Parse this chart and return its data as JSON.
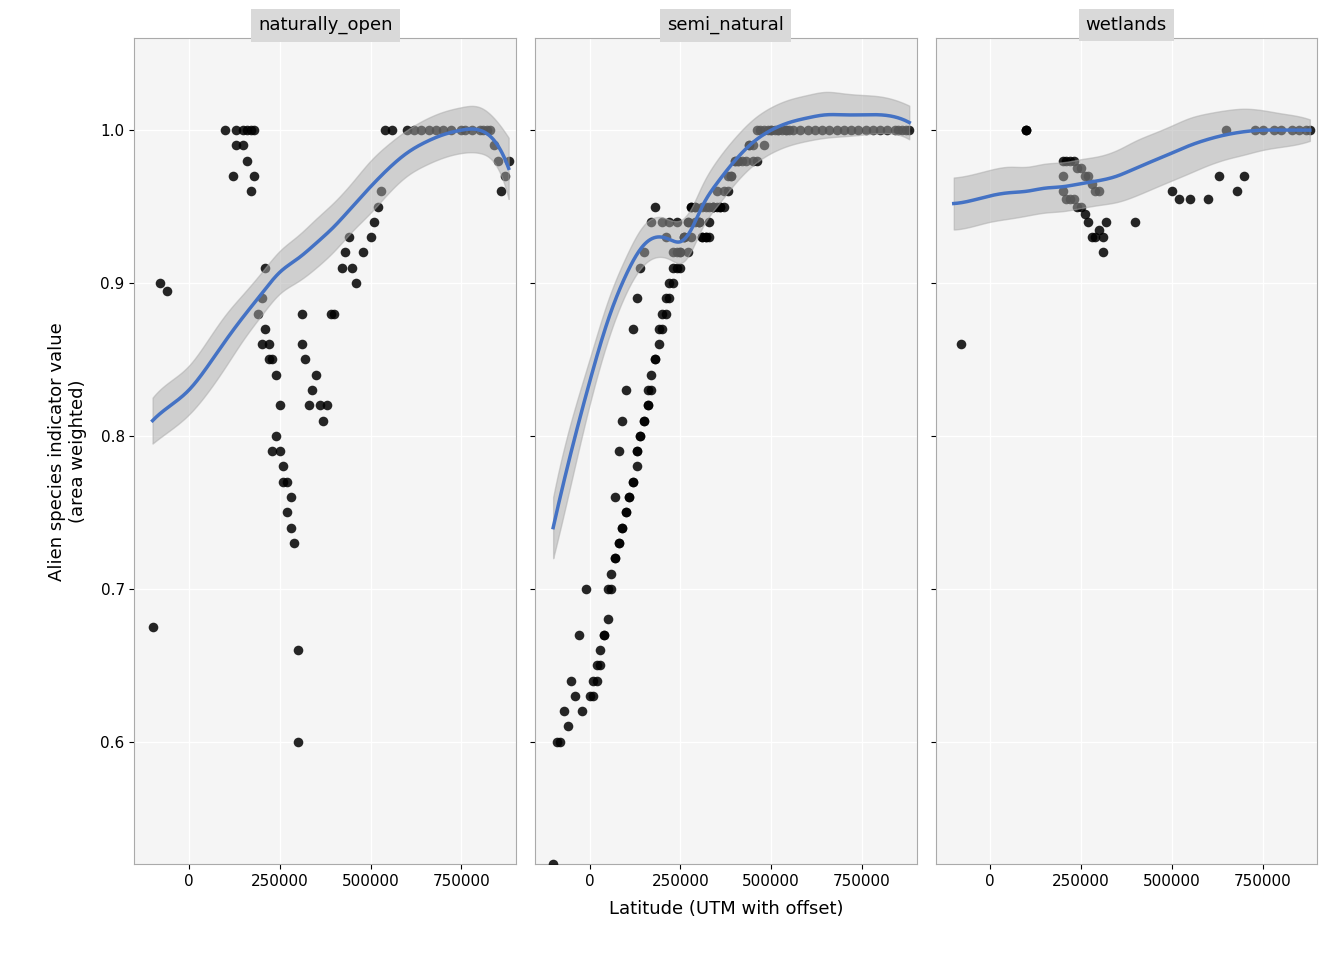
{
  "panels": [
    "naturally_open",
    "semi_natural",
    "wetlands"
  ],
  "xlabel": "Latitude (UTM with offset)",
  "ylabel": "Alien species indicator value\n(area weighted)",
  "xlim": [
    -150000,
    900000
  ],
  "ylim": [
    0.52,
    1.06
  ],
  "yticks": [
    0.6,
    0.7,
    0.8,
    0.9,
    1.0
  ],
  "xticks": [
    0,
    250000,
    500000,
    750000
  ],
  "xticklabels": [
    "0",
    "250000",
    "500000",
    "750000"
  ],
  "background_color": "#FFFFFF",
  "panel_bg": "#F5F5F5",
  "strip_bg": "#D9D9D9",
  "grid_color": "#FFFFFF",
  "point_color": "#000000",
  "loess_color": "#4472C4",
  "loess_ci_color": "#AAAAAA",
  "point_size": 6,
  "point_alpha": 0.85,
  "naturally_open_x": [
    -100000,
    -80000,
    -60000,
    100000,
    120000,
    130000,
    130000,
    150000,
    150000,
    160000,
    160000,
    170000,
    170000,
    180000,
    180000,
    190000,
    200000,
    200000,
    210000,
    210000,
    220000,
    220000,
    230000,
    230000,
    240000,
    240000,
    250000,
    250000,
    260000,
    260000,
    270000,
    270000,
    280000,
    280000,
    290000,
    300000,
    300000,
    310000,
    310000,
    320000,
    330000,
    340000,
    350000,
    360000,
    370000,
    380000,
    390000,
    400000,
    420000,
    430000,
    440000,
    450000,
    460000,
    480000,
    500000,
    510000,
    520000,
    530000,
    540000,
    560000,
    600000,
    620000,
    640000,
    660000,
    680000,
    700000,
    720000,
    750000,
    760000,
    780000,
    800000,
    810000,
    820000,
    830000,
    840000,
    850000,
    860000,
    870000,
    880000
  ],
  "naturally_open_y": [
    0.675,
    0.9,
    0.895,
    1.0,
    0.97,
    0.99,
    1.0,
    1.0,
    0.99,
    0.98,
    1.0,
    1.0,
    0.96,
    1.0,
    0.97,
    0.88,
    0.89,
    0.86,
    0.91,
    0.87,
    0.85,
    0.86,
    0.85,
    0.79,
    0.84,
    0.8,
    0.82,
    0.79,
    0.78,
    0.77,
    0.77,
    0.75,
    0.76,
    0.74,
    0.73,
    0.66,
    0.6,
    0.88,
    0.86,
    0.85,
    0.82,
    0.83,
    0.84,
    0.82,
    0.81,
    0.82,
    0.88,
    0.88,
    0.91,
    0.92,
    0.93,
    0.91,
    0.9,
    0.92,
    0.93,
    0.94,
    0.95,
    0.96,
    1.0,
    1.0,
    1.0,
    1.0,
    1.0,
    1.0,
    1.0,
    1.0,
    1.0,
    1.0,
    1.0,
    1.0,
    1.0,
    1.0,
    1.0,
    1.0,
    0.99,
    0.98,
    0.96,
    0.97,
    0.98
  ],
  "naturally_open_loess_x": [
    -100000,
    -50000,
    0,
    50000,
    100000,
    150000,
    200000,
    250000,
    300000,
    350000,
    400000,
    450000,
    500000,
    550000,
    600000,
    650000,
    700000,
    750000,
    800000,
    850000,
    880000
  ],
  "naturally_open_loess_y": [
    0.81,
    0.82,
    0.83,
    0.845,
    0.862,
    0.878,
    0.893,
    0.907,
    0.916,
    0.926,
    0.937,
    0.95,
    0.963,
    0.975,
    0.985,
    0.992,
    0.997,
    1.0,
    1.0,
    0.99,
    0.975
  ],
  "naturally_open_ci_low": [
    0.795,
    0.804,
    0.814,
    0.828,
    0.845,
    0.863,
    0.879,
    0.893,
    0.901,
    0.91,
    0.921,
    0.934,
    0.946,
    0.959,
    0.97,
    0.977,
    0.982,
    0.985,
    0.985,
    0.975,
    0.955
  ],
  "naturally_open_ci_high": [
    0.825,
    0.836,
    0.846,
    0.862,
    0.879,
    0.893,
    0.907,
    0.921,
    0.931,
    0.942,
    0.953,
    0.966,
    0.98,
    0.991,
    1.0,
    1.007,
    1.012,
    1.015,
    1.015,
    1.005,
    0.995
  ],
  "semi_natural_x": [
    -100000,
    -80000,
    -60000,
    -40000,
    -20000,
    0,
    10000,
    10000,
    20000,
    20000,
    30000,
    30000,
    40000,
    40000,
    50000,
    50000,
    60000,
    60000,
    70000,
    70000,
    80000,
    80000,
    90000,
    90000,
    100000,
    100000,
    110000,
    110000,
    120000,
    120000,
    130000,
    130000,
    130000,
    140000,
    140000,
    150000,
    150000,
    160000,
    160000,
    160000,
    170000,
    170000,
    180000,
    180000,
    190000,
    190000,
    200000,
    200000,
    210000,
    210000,
    220000,
    220000,
    230000,
    230000,
    240000,
    240000,
    250000,
    250000,
    260000,
    260000,
    270000,
    270000,
    280000,
    280000,
    290000,
    290000,
    300000,
    300000,
    310000,
    310000,
    320000,
    320000,
    330000,
    330000,
    340000,
    340000,
    350000,
    360000,
    370000,
    380000,
    390000,
    400000,
    410000,
    420000,
    430000,
    440000,
    450000,
    460000,
    470000,
    480000,
    490000,
    500000,
    510000,
    520000,
    530000,
    540000,
    550000,
    560000,
    580000,
    600000,
    620000,
    640000,
    660000,
    680000,
    700000,
    720000,
    740000,
    760000,
    780000,
    800000,
    820000,
    840000,
    850000,
    860000,
    870000,
    880000
  ],
  "semi_natural_y": [
    0.52,
    0.6,
    0.61,
    0.63,
    0.62,
    0.63,
    0.63,
    0.64,
    0.64,
    0.65,
    0.65,
    0.66,
    0.67,
    0.67,
    0.68,
    0.7,
    0.7,
    0.71,
    0.72,
    0.72,
    0.73,
    0.73,
    0.74,
    0.74,
    0.75,
    0.75,
    0.76,
    0.76,
    0.77,
    0.77,
    0.78,
    0.79,
    0.79,
    0.8,
    0.8,
    0.81,
    0.81,
    0.82,
    0.82,
    0.83,
    0.83,
    0.84,
    0.85,
    0.85,
    0.86,
    0.87,
    0.87,
    0.88,
    0.88,
    0.89,
    0.89,
    0.9,
    0.9,
    0.91,
    0.91,
    0.92,
    0.92,
    0.92,
    0.93,
    0.93,
    0.94,
    0.94,
    0.95,
    0.95,
    0.95,
    0.95,
    0.94,
    0.94,
    0.93,
    0.93,
    0.93,
    0.93,
    0.93,
    0.94,
    0.95,
    0.95,
    0.95,
    0.95,
    0.95,
    0.96,
    0.97,
    0.98,
    0.98,
    0.98,
    0.98,
    0.99,
    0.99,
    1.0,
    1.0,
    1.0,
    1.0,
    1.0,
    1.0,
    1.0,
    1.0,
    1.0,
    1.0,
    1.0,
    1.0,
    1.0,
    1.0,
    1.0,
    1.0,
    1.0,
    1.0,
    1.0,
    1.0,
    1.0,
    1.0,
    1.0,
    1.0,
    1.0,
    1.0,
    1.0,
    1.0,
    1.0
  ],
  "semi_natural_extra_x": [
    -90000,
    -70000,
    -50000,
    -30000,
    -10000,
    70000,
    80000,
    90000,
    100000,
    120000,
    130000,
    140000,
    150000,
    170000,
    180000,
    200000,
    210000,
    220000,
    230000,
    240000,
    250000,
    260000,
    270000,
    280000,
    290000,
    300000,
    310000,
    320000,
    330000,
    340000,
    350000,
    360000,
    370000,
    380000,
    390000,
    400000,
    410000,
    440000,
    450000,
    460000,
    480000,
    500000,
    520000,
    540000
  ],
  "semi_natural_extra_y": [
    0.6,
    0.62,
    0.64,
    0.67,
    0.7,
    0.76,
    0.79,
    0.81,
    0.83,
    0.87,
    0.89,
    0.91,
    0.92,
    0.94,
    0.95,
    0.94,
    0.93,
    0.94,
    0.92,
    0.94,
    0.91,
    0.93,
    0.92,
    0.93,
    0.94,
    0.94,
    0.95,
    0.95,
    0.95,
    0.95,
    0.96,
    0.95,
    0.96,
    0.97,
    0.97,
    0.98,
    0.98,
    0.99,
    0.98,
    0.98,
    0.99,
    1.0,
    1.0,
    1.0
  ],
  "semi_natural_loess_x": [
    -100000,
    -50000,
    0,
    50000,
    100000,
    150000,
    200000,
    225000,
    250000,
    280000,
    310000,
    350000,
    400000,
    450000,
    500000,
    550000,
    600000,
    650000,
    700000,
    750000,
    800000,
    850000,
    880000
  ],
  "semi_natural_loess_y": [
    0.74,
    0.79,
    0.835,
    0.875,
    0.905,
    0.925,
    0.93,
    0.928,
    0.927,
    0.935,
    0.95,
    0.965,
    0.98,
    0.992,
    1.0,
    1.005,
    1.008,
    1.01,
    1.01,
    1.01,
    1.01,
    1.008,
    1.005
  ],
  "semi_natural_ci_low": [
    0.72,
    0.77,
    0.82,
    0.862,
    0.893,
    0.912,
    0.917,
    0.915,
    0.913,
    0.921,
    0.936,
    0.95,
    0.965,
    0.977,
    0.985,
    0.99,
    0.993,
    0.995,
    0.996,
    0.997,
    0.998,
    0.997,
    0.994
  ],
  "semi_natural_ci_high": [
    0.76,
    0.81,
    0.85,
    0.888,
    0.917,
    0.938,
    0.943,
    0.941,
    0.941,
    0.949,
    0.964,
    0.98,
    0.995,
    1.007,
    1.015,
    1.02,
    1.023,
    1.025,
    1.024,
    1.023,
    1.022,
    1.019,
    1.016
  ],
  "wetlands_x": [
    -80000,
    100000,
    100000,
    200000,
    200000,
    210000,
    220000,
    230000,
    240000,
    250000,
    260000,
    270000,
    280000,
    290000,
    300000,
    310000,
    310000,
    320000,
    400000,
    500000,
    520000,
    550000,
    600000,
    630000,
    650000,
    680000,
    700000,
    730000,
    750000,
    780000,
    800000,
    830000,
    850000,
    870000,
    880000
  ],
  "wetlands_y": [
    0.86,
    1.0,
    1.0,
    0.97,
    0.96,
    0.955,
    0.955,
    0.955,
    0.95,
    0.95,
    0.945,
    0.94,
    0.93,
    0.93,
    0.935,
    0.93,
    0.92,
    0.94,
    0.94,
    0.96,
    0.955,
    0.955,
    0.955,
    0.97,
    1.0,
    0.96,
    0.97,
    1.0,
    1.0,
    1.0,
    1.0,
    1.0,
    1.0,
    1.0,
    1.0
  ],
  "wetlands_extra_x": [
    100000,
    200000,
    210000,
    220000,
    230000,
    240000,
    250000,
    260000,
    270000,
    280000,
    290000,
    300000
  ],
  "wetlands_extra_y": [
    1.0,
    0.98,
    0.98,
    0.98,
    0.98,
    0.975,
    0.975,
    0.97,
    0.97,
    0.965,
    0.96,
    0.96
  ],
  "wetlands_loess_x": [
    -100000,
    -50000,
    0,
    50000,
    100000,
    150000,
    200000,
    250000,
    300000,
    350000,
    400000,
    450000,
    500000,
    550000,
    600000,
    650000,
    700000,
    750000,
    800000,
    850000,
    880000
  ],
  "wetlands_loess_y": [
    0.952,
    0.954,
    0.957,
    0.959,
    0.96,
    0.962,
    0.963,
    0.965,
    0.967,
    0.97,
    0.975,
    0.98,
    0.985,
    0.99,
    0.994,
    0.997,
    0.999,
    1.0,
    1.0,
    1.0,
    1.0
  ],
  "wetlands_ci_low": [
    0.935,
    0.937,
    0.94,
    0.942,
    0.944,
    0.946,
    0.947,
    0.949,
    0.951,
    0.953,
    0.957,
    0.962,
    0.967,
    0.972,
    0.977,
    0.981,
    0.984,
    0.987,
    0.989,
    0.991,
    0.993
  ],
  "wetlands_ci_high": [
    0.969,
    0.971,
    0.974,
    0.976,
    0.976,
    0.978,
    0.979,
    0.981,
    0.983,
    0.987,
    0.993,
    0.998,
    1.003,
    1.008,
    1.011,
    1.013,
    1.014,
    1.013,
    1.011,
    1.009,
    1.007
  ]
}
